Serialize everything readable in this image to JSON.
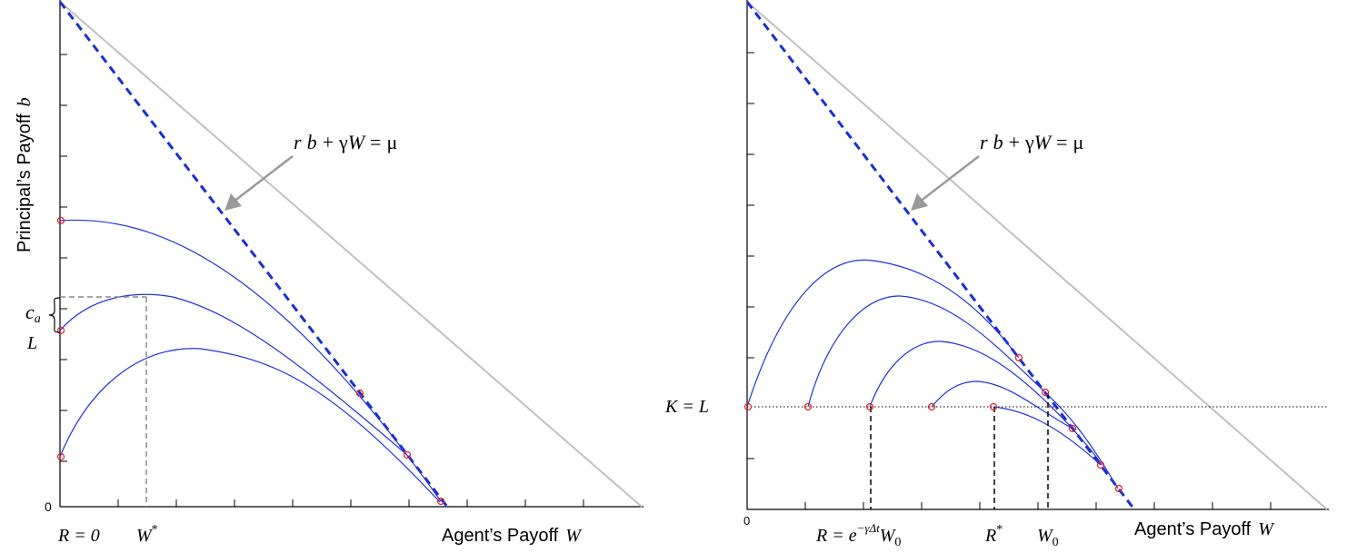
{
  "colors": {
    "axis": "#000000",
    "diagonal": "#c0c0c0",
    "dashed_line": "#1a2fd0",
    "curves": "#2233dd",
    "markers": "#e02020",
    "guides": "#888888",
    "arrow": "#999999"
  },
  "left_panel": {
    "ylabel": "Principal’s Payoff",
    "ylabel_var": "b",
    "xlabel": "Agent’s Payoff",
    "xlabel_var": "W",
    "origin_label": "0",
    "equation": {
      "r": "r",
      "b": "b",
      "plus": "+",
      "gamma": "γ",
      "W": "W",
      "equals": "=",
      "mu": "μ"
    },
    "label_ca_main": "c",
    "label_ca_sub": "a",
    "label_L": "L",
    "label_R0": "R = 0",
    "label_Wstar": "W",
    "label_Wstar_sup": "*"
  },
  "right_panel": {
    "xlabel": "Agent’s Payoff",
    "xlabel_var": "W",
    "origin_label": "0",
    "equation": {
      "r": "r",
      "b": "b",
      "plus": "+",
      "gamma": "γ",
      "W": "W",
      "equals": "=",
      "mu": "μ"
    },
    "label_KL": "K = L",
    "label_R_expr_lhs": "R = e",
    "label_R_expr_exp": "−γΔt",
    "label_R_expr_W": "W",
    "label_R_expr_sub": "0",
    "label_Rstar": "R",
    "label_Rstar_sup": "*",
    "label_W0": "W",
    "label_W0_sub": "0"
  }
}
